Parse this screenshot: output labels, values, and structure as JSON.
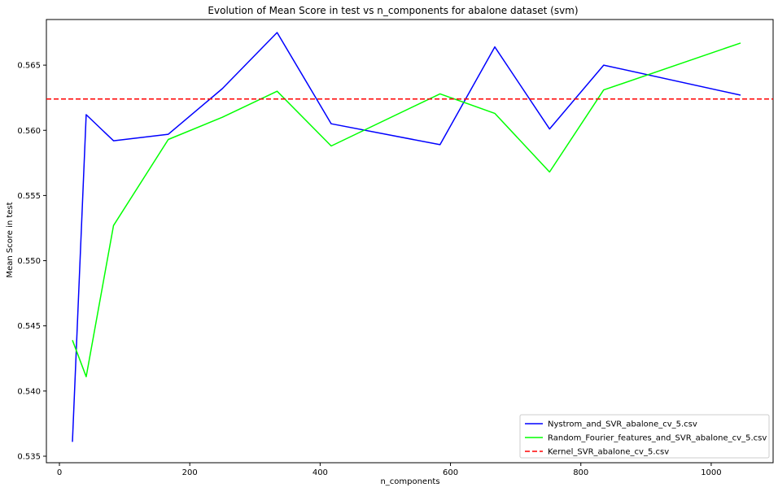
{
  "chart_data": {
    "type": "line",
    "title": "Evolution of Mean Score in test vs n_components for abalone dataset (svm)",
    "xlabel": "n_components",
    "ylabel": "Mean Score in test",
    "xlim": [
      -20,
      1095
    ],
    "ylim": [
      0.5345,
      0.5685
    ],
    "xticks": [
      0,
      200,
      400,
      600,
      800,
      1000
    ],
    "xtick_labels": [
      "0",
      "200",
      "400",
      "600",
      "800",
      "1000"
    ],
    "yticks": [
      0.535,
      0.54,
      0.545,
      0.55,
      0.555,
      0.56,
      0.565
    ],
    "ytick_labels": [
      "0.535",
      "0.540",
      "0.545",
      "0.550",
      "0.555",
      "0.560",
      "0.565"
    ],
    "grid": false,
    "legend_position": "lower-right",
    "series": [
      {
        "name": "Nystrom_and_SVR_abalone_cv_5.csv",
        "color": "#0000ff",
        "style": "solid",
        "x": [
          20,
          41,
          83,
          167,
          250,
          334,
          417,
          584,
          668,
          752,
          835,
          1045
        ],
        "y": [
          0.5361,
          0.5612,
          0.5592,
          0.5597,
          0.5632,
          0.5675,
          0.5605,
          0.5589,
          0.5664,
          0.5601,
          0.565,
          0.5627
        ]
      },
      {
        "name": "Random_Fourier_features_and_SVR_abalone_cv_5.csv",
        "color": "#00ff00",
        "style": "solid",
        "x": [
          20,
          41,
          83,
          167,
          250,
          334,
          417,
          584,
          668,
          752,
          835,
          1045
        ],
        "y": [
          0.5439,
          0.5411,
          0.5527,
          0.5593,
          0.561,
          0.563,
          0.5588,
          0.5628,
          0.5613,
          0.5568,
          0.5631,
          0.5667
        ]
      },
      {
        "name": "Kernel_SVR_abalone_cv_5.csv",
        "color": "#ff0000",
        "style": "dashed",
        "hline": 0.5624
      }
    ]
  }
}
